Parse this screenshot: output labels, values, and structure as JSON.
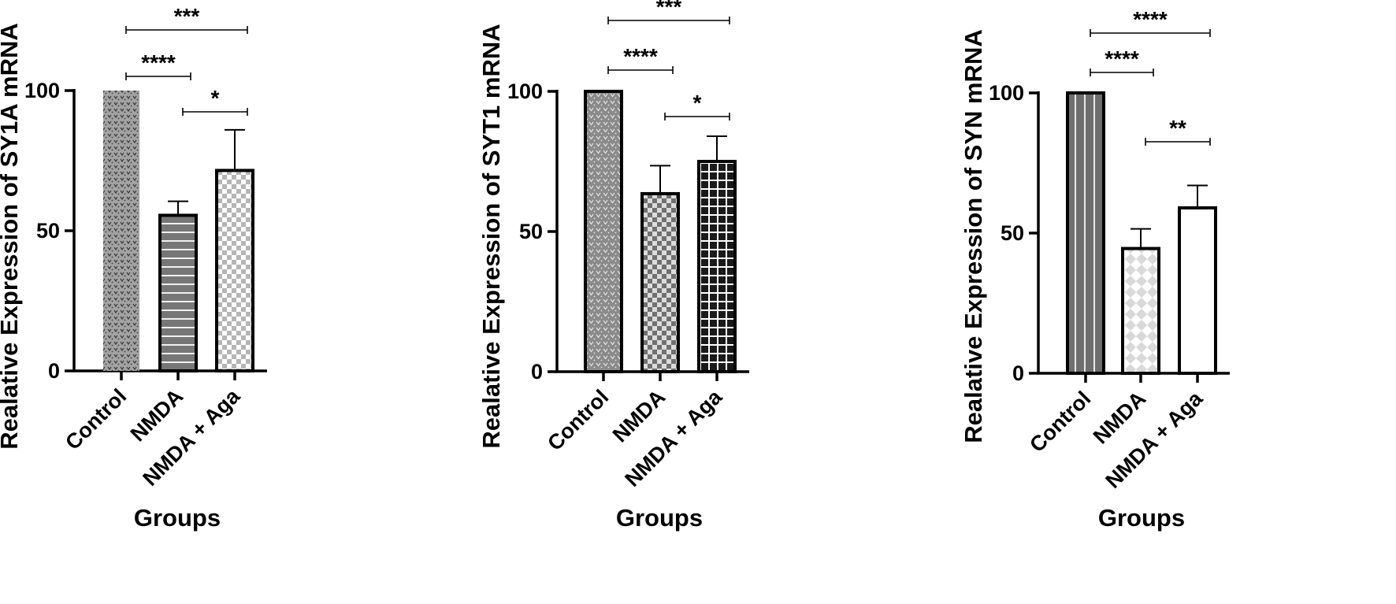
{
  "chart_data": [
    {
      "type": "bar",
      "categories": [
        "Control",
        "NMDA",
        "NMDA + Aga"
      ],
      "values": [
        100,
        55.5,
        71.5
      ],
      "errors": [
        0,
        5,
        14.5
      ],
      "ylabel": "Realative Expression of SY1A mRNA",
      "xlabel": "Groups",
      "ylim": [
        0,
        100
      ],
      "yticks": [
        "0",
        "50",
        "100"
      ],
      "grid": false,
      "patterns": [
        "dense-dots",
        "horizontal-lines",
        "checker"
      ],
      "colors": {
        "Control": "#a3a3a3",
        "NMDA": "#777777",
        "NMDA + Aga": "#ffffff"
      },
      "significance": [
        {
          "from": 0,
          "to": 2,
          "label": "***"
        },
        {
          "from": 0,
          "to": 1,
          "label": "****"
        },
        {
          "from": 1,
          "to": 2,
          "label": "*"
        }
      ]
    },
    {
      "type": "bar",
      "categories": [
        "Control",
        "NMDA",
        "NMDA + Aga"
      ],
      "values": [
        100,
        63.5,
        75
      ],
      "errors": [
        0,
        10,
        9
      ],
      "ylabel": "Realative Expression of SYT1 mRNA",
      "xlabel": "Groups",
      "ylim": [
        0,
        100
      ],
      "yticks": [
        "0",
        "50",
        "100"
      ],
      "grid": false,
      "patterns": [
        "dense-dots",
        "checker",
        "grid"
      ],
      "colors": {
        "Control": "#8a8a8a",
        "NMDA": "#8a8a8a",
        "NMDA + Aga": "#1a1a1a"
      },
      "significance": [
        {
          "from": 0,
          "to": 2,
          "label": "***"
        },
        {
          "from": 0,
          "to": 1,
          "label": "****"
        },
        {
          "from": 1,
          "to": 2,
          "label": "*"
        }
      ]
    },
    {
      "type": "bar",
      "categories": [
        "Control",
        "NMDA",
        "NMDA + Aga"
      ],
      "values": [
        100,
        44.5,
        59
      ],
      "errors": [
        0,
        7,
        8
      ],
      "ylabel": "Realative Expression of SYN mRNA",
      "xlabel": "Groups",
      "ylim": [
        0,
        100
      ],
      "yticks": [
        "0",
        "50",
        "100"
      ],
      "grid": false,
      "patterns": [
        "vertical-lines",
        "diamond-dots",
        "plain"
      ],
      "colors": {
        "Control": "#6e6e6e",
        "NMDA": "#d9d9d9",
        "NMDA + Aga": "#ffffff"
      },
      "significance": [
        {
          "from": 0,
          "to": 2,
          "label": "****"
        },
        {
          "from": 0,
          "to": 1,
          "label": "****"
        },
        {
          "from": 1,
          "to": 2,
          "label": "**"
        }
      ]
    }
  ]
}
